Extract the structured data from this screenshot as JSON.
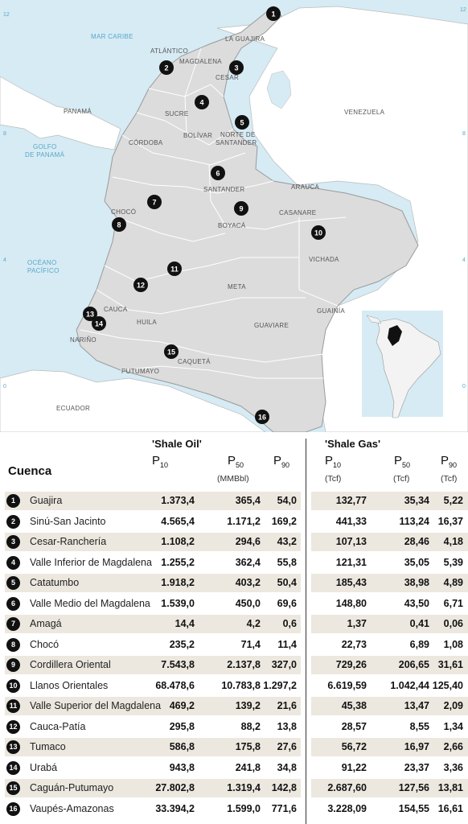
{
  "map": {
    "sea_labels": {
      "caribbean": "MAR CARIBE",
      "gulf_line1": "GOLFO",
      "gulf_line2": "DE PANAMÁ",
      "pacific_line1": "OCÉANO",
      "pacific_line2": "PACÍFICO"
    },
    "countries": {
      "panama": "PANAMÁ",
      "venezuela": "VENEZUELA",
      "ecuador": "ECUADOR"
    },
    "departments": [
      "ATLÁNTICO",
      "MAGDALENA",
      "LA GUAJIRA",
      "CESAR",
      "SUCRE",
      "BOLÍVAR",
      "NORTE DE",
      "SANTANDER",
      "CÓRDOBA",
      "SANTANDER",
      "ARAUCA",
      "CHOCÓ",
      "BOYACÁ",
      "CASANARE",
      "VICHADA",
      "CAUCA",
      "HUILA",
      "META",
      "GUAINÍA",
      "GUAVIARE",
      "NARIÑO",
      "PUTUMAYO",
      "CAQUETÁ"
    ],
    "coord_labels": {
      "left_12": "12",
      "left_8": "8",
      "left_4": "4",
      "left_0": "0",
      "right_12": "12",
      "right_8": "8",
      "right_4": "4",
      "right_0": "0"
    },
    "markers": [
      "1",
      "2",
      "3",
      "4",
      "5",
      "6",
      "7",
      "8",
      "9",
      "10",
      "11",
      "12",
      "13",
      "14",
      "15",
      "16"
    ]
  },
  "table": {
    "cuenca_header": "Cuenca",
    "oil": {
      "title": "'Shale Oil'",
      "p10": "P",
      "p10_sub": "10",
      "p50": "P",
      "p50_sub": "50",
      "p90": "P",
      "p90_sub": "90",
      "unit": "(MMBbl)"
    },
    "gas": {
      "title": "'Shale Gas'",
      "p10": "P",
      "p10_sub": "10",
      "p50": "P",
      "p50_sub": "50",
      "p90": "P",
      "p90_sub": "90",
      "unit_p10": "(Tcf)",
      "unit_p50": "(Tcf)",
      "unit_p90": "(Tcf)"
    },
    "rows": [
      {
        "num": "1",
        "name": "Guajira",
        "oil_p10": "1.373,4",
        "oil_p50": "365,4",
        "oil_p90": "54,0",
        "gas_p10": "132,77",
        "gas_p50": "35,34",
        "gas_p90": "5,22"
      },
      {
        "num": "2",
        "name": "Sinú-San Jacinto",
        "oil_p10": "4.565,4",
        "oil_p50": "1.171,2",
        "oil_p90": "169,2",
        "gas_p10": "441,33",
        "gas_p50": "113,24",
        "gas_p90": "16,37"
      },
      {
        "num": "3",
        "name": "Cesar-Ranchería",
        "oil_p10": "1.108,2",
        "oil_p50": "294,6",
        "oil_p90": "43,2",
        "gas_p10": "107,13",
        "gas_p50": "28,46",
        "gas_p90": "4,18"
      },
      {
        "num": "4",
        "name": "Valle Inferior de Magdalena",
        "oil_p10": "1.255,2",
        "oil_p50": "362,4",
        "oil_p90": "55,8",
        "gas_p10": "121,31",
        "gas_p50": "35,05",
        "gas_p90": "5,39"
      },
      {
        "num": "5",
        "name": "Catatumbo",
        "oil_p10": "1.918,2",
        "oil_p50": "403,2",
        "oil_p90": "50,4",
        "gas_p10": "185,43",
        "gas_p50": "38,98",
        "gas_p90": "4,89"
      },
      {
        "num": "6",
        "name": "Valle Medio del Magdalena",
        "oil_p10": "1.539,0",
        "oil_p50": "450,0",
        "oil_p90": "69,6",
        "gas_p10": "148,80",
        "gas_p50": "43,50",
        "gas_p90": "6,71"
      },
      {
        "num": "7",
        "name": "Amagá",
        "oil_p10": "14,4",
        "oil_p50": "4,2",
        "oil_p90": "0,6",
        "gas_p10": "1,37",
        "gas_p50": "0,41",
        "gas_p90": "0,06"
      },
      {
        "num": "8",
        "name": "Chocó",
        "oil_p10": "235,2",
        "oil_p50": "71,4",
        "oil_p90": "11,4",
        "gas_p10": "22,73",
        "gas_p50": "6,89",
        "gas_p90": "1,08"
      },
      {
        "num": "9",
        "name": "Cordillera Oriental",
        "oil_p10": "7.543,8",
        "oil_p50": "2.137,8",
        "oil_p90": "327,0",
        "gas_p10": "729,26",
        "gas_p50": "206,65",
        "gas_p90": "31,61"
      },
      {
        "num": "10",
        "name": "Llanos Orientales",
        "oil_p10": "68.478,6",
        "oil_p50": "10.783,8",
        "oil_p90": "1.297,2",
        "gas_p10": "6.619,59",
        "gas_p50": "1.042,44",
        "gas_p90": "125,40"
      },
      {
        "num": "11",
        "name": "Valle Superior del Magdalena",
        "oil_p10": "469,2",
        "oil_p50": "139,2",
        "oil_p90": "21,6",
        "gas_p10": "45,38",
        "gas_p50": "13,47",
        "gas_p90": "2,09"
      },
      {
        "num": "12",
        "name": "Cauca-Patía",
        "oil_p10": "295,8",
        "oil_p50": "88,2",
        "oil_p90": "13,8",
        "gas_p10": "28,57",
        "gas_p50": "8,55",
        "gas_p90": "1,34"
      },
      {
        "num": "13",
        "name": "Tumaco",
        "oil_p10": "586,8",
        "oil_p50": "175,8",
        "oil_p90": "27,6",
        "gas_p10": "56,72",
        "gas_p50": "16,97",
        "gas_p90": "2,66"
      },
      {
        "num": "14",
        "name": "Urabá",
        "oil_p10": "943,8",
        "oil_p50": "241,8",
        "oil_p90": "34,8",
        "gas_p10": "91,22",
        "gas_p50": "23,37",
        "gas_p90": "3,36"
      },
      {
        "num": "15",
        "name": "Caguán-Putumayo",
        "oil_p10": "27.802,8",
        "oil_p50": "1.319,4",
        "oil_p90": "142,8",
        "gas_p10": "2.687,60",
        "gas_p50": "127,56",
        "gas_p90": "13,81"
      },
      {
        "num": "16",
        "name": "Vaupés-Amazonas",
        "oil_p10": "33.394,2",
        "oil_p50": "1.599,0",
        "oil_p90": "771,6",
        "gas_p10": "3.228,09",
        "gas_p50": "154,55",
        "gas_p90": "16,61"
      }
    ]
  },
  "colors": {
    "sea": "#d6ebf4",
    "land_colombia": "#dcdcdc",
    "land_other": "#ffffff",
    "border": "#9a9a9a",
    "marker": "#111111",
    "row_shade": "#ece8df"
  }
}
